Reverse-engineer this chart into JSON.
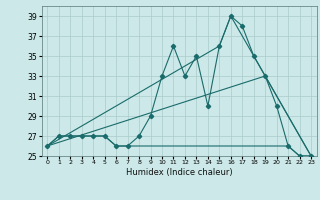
{
  "title": "",
  "xlabel": "Humidex (Indice chaleur)",
  "bg_color": "#cce8e8",
  "grid_color": "#aacccc",
  "line_color": "#1a6b6b",
  "xlim": [
    -0.5,
    23.5
  ],
  "ylim": [
    25,
    40
  ],
  "yticks": [
    25,
    27,
    29,
    31,
    33,
    35,
    37,
    39
  ],
  "xticks": [
    0,
    1,
    2,
    3,
    4,
    5,
    6,
    7,
    8,
    9,
    10,
    11,
    12,
    13,
    14,
    15,
    16,
    17,
    18,
    19,
    20,
    21,
    22,
    23
  ],
  "series1_x": [
    0,
    1,
    2,
    3,
    4,
    5,
    6,
    7,
    8,
    9,
    10,
    11,
    12,
    13,
    14,
    15,
    16,
    17,
    18,
    19,
    20,
    21,
    22,
    23
  ],
  "series1_y": [
    26,
    27,
    27,
    27,
    27,
    27,
    26,
    26,
    27,
    29,
    33,
    36,
    33,
    35,
    30,
    36,
    39,
    38,
    35,
    33,
    30,
    26,
    25,
    25
  ],
  "series2_x": [
    0,
    1,
    2,
    3,
    4,
    5,
    6,
    7,
    8,
    9,
    10,
    11,
    12,
    13,
    14,
    15,
    16,
    17,
    18,
    19,
    20,
    21,
    22,
    23
  ],
  "series2_y": [
    26,
    27,
    27,
    27,
    27,
    27,
    26,
    26,
    26,
    26,
    26,
    26,
    26,
    26,
    26,
    26,
    26,
    26,
    26,
    26,
    26,
    26,
    25,
    25
  ],
  "series3_x": [
    0,
    15,
    16,
    23
  ],
  "series3_y": [
    26,
    36,
    39,
    25
  ],
  "series4_x": [
    0,
    19,
    23
  ],
  "series4_y": [
    26,
    33,
    25
  ]
}
